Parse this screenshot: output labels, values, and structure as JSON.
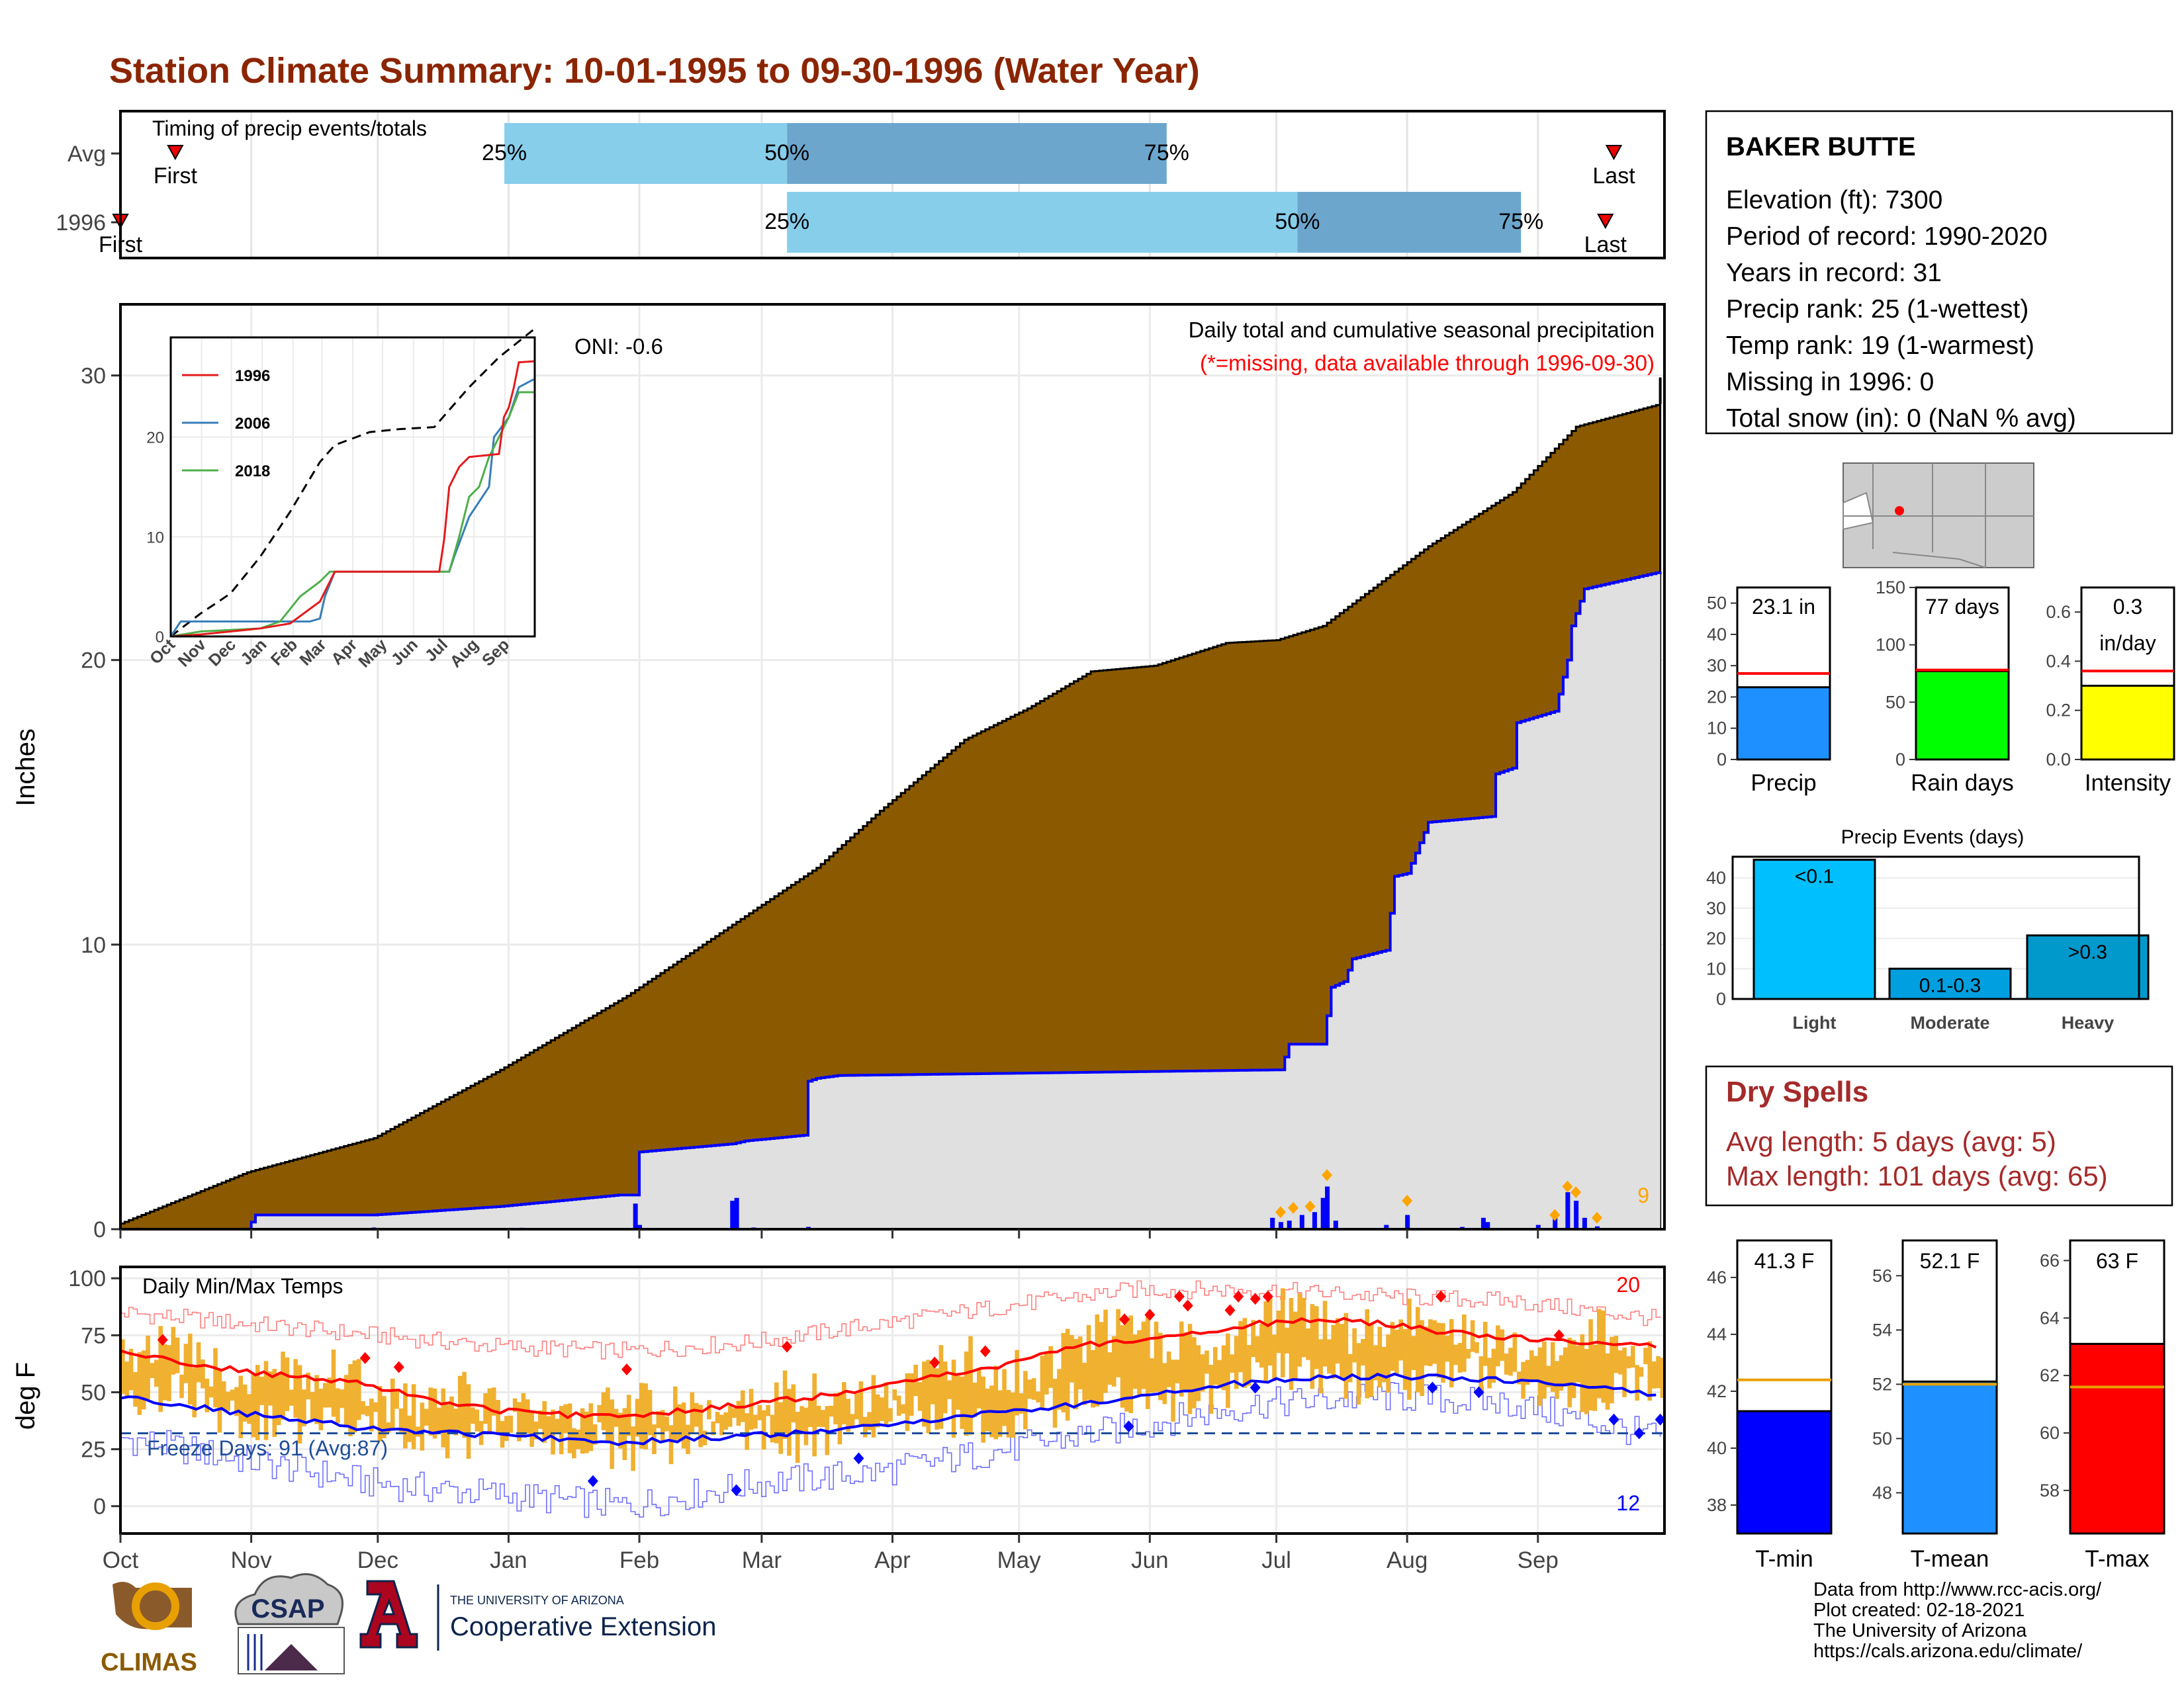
{
  "title": "Station Climate Summary: 10-01-1995 to 09-30-1996 (Water Year)",
  "colors": {
    "title": "#8b2500",
    "brown": "#8b5a00",
    "gray_fill": "#e0e0e0",
    "timing_light": "#87ceeb",
    "timing_dark": "#6ca6cd",
    "red": "#ff0000",
    "blue": "#0000ff",
    "temp_bar": "#f0b030",
    "freeze_line": "#1f4e9a",
    "dry_spell": "#a52a2a",
    "rain_green": "#00ff00",
    "precip_blue": "#1e90ff",
    "intensity_yellow": "#ffff00",
    "event_light": "#00bfff",
    "event_moderate": "#00a0e0",
    "event_heavy": "#0099cc",
    "inset_1996": "#e41a1c",
    "inset_2006": "#377eb8",
    "inset_2018": "#4daf4a"
  },
  "months": [
    "Oct",
    "Nov",
    "Dec",
    "Jan",
    "Feb",
    "Mar",
    "Apr",
    "May",
    "Jun",
    "Jul",
    "Aug",
    "Sep"
  ],
  "timing": {
    "label": "Timing of precip events/totals",
    "rows": [
      {
        "name": "Avg",
        "first": "First",
        "last": "Last",
        "first_day": 13,
        "last_day": 354,
        "p25": 91,
        "p50": 158,
        "p75": 248
      },
      {
        "name": "1996",
        "first": "First",
        "last": "Last",
        "first_day": 0,
        "last_day": 352,
        "p25": 158,
        "p50": 279,
        "p75": 332
      }
    ],
    "pct_labels": [
      "25%",
      "50%",
      "75%"
    ]
  },
  "precip": {
    "ylabel": "Inches",
    "yticks": [
      0,
      10,
      20,
      30
    ],
    "ylim": [
      0,
      32.5
    ],
    "oni": "ONI: -0.6",
    "caption": "Daily total and cumulative seasonal precipitation",
    "missing_note": "(*=missing, data available through 1996-09-30)",
    "extreme_count": "9",
    "chart_data": {
      "type": "area",
      "series": [
        {
          "name": "avg_cumulative",
          "day": [
            0,
            10,
            30,
            60,
            90,
            120,
            150,
            165,
            180,
            200,
            215,
            230,
            245,
            262,
            274,
            285,
            310,
            330,
            345,
            365
          ],
          "values": [
            0.2,
            0.8,
            2.0,
            3.2,
            5.6,
            8.2,
            11.2,
            12.7,
            14.7,
            17.2,
            18.3,
            19.6,
            19.8,
            20.6,
            20.7,
            21.2,
            24.0,
            25.9,
            28.2,
            29.0
          ]
        },
        {
          "name": "1996_cumulative",
          "day": [
            0,
            30,
            32,
            60,
            90,
            118,
            122,
            122,
            145,
            148,
            162,
            163,
            165,
            170,
            275,
            277,
            285,
            287,
            290,
            292,
            300,
            302,
            305,
            310,
            325,
            326,
            330,
            331,
            340,
            343,
            344,
            347,
            365
          ],
          "values": [
            0,
            0,
            0.5,
            0.5,
            0.8,
            1.2,
            1.2,
            2.7,
            3.0,
            3.1,
            3.3,
            5.2,
            5.3,
            5.4,
            5.6,
            6.5,
            6.5,
            8.5,
            8.7,
            9.5,
            9.8,
            12.4,
            12.5,
            14.3,
            14.5,
            16.0,
            16.2,
            17.8,
            18.2,
            20.0,
            21.2,
            22.5,
            23.1
          ]
        }
      ],
      "daily_bars": [
        [
          4,
          0.05
        ],
        [
          30,
          0.05
        ],
        [
          60,
          0.06
        ],
        [
          90,
          0.04
        ],
        [
          95,
          0.05
        ],
        [
          122,
          0.9
        ],
        [
          123,
          0.15
        ],
        [
          145,
          1.0
        ],
        [
          146,
          1.1
        ],
        [
          150,
          0.06
        ],
        [
          163,
          0.08
        ],
        [
          273,
          0.4
        ],
        [
          275,
          0.25
        ],
        [
          277,
          0.3
        ],
        [
          280,
          0.5
        ],
        [
          283,
          0.6
        ],
        [
          285,
          1.1
        ],
        [
          286,
          1.5
        ],
        [
          288,
          0.3
        ],
        [
          300,
          0.15
        ],
        [
          305,
          0.5
        ],
        [
          318,
          0.08
        ],
        [
          323,
          0.4
        ],
        [
          324,
          0.25
        ],
        [
          336,
          0.15
        ],
        [
          340,
          0.6
        ],
        [
          343,
          1.3
        ],
        [
          345,
          1.0
        ],
        [
          347,
          0.4
        ],
        [
          350,
          0.1
        ]
      ],
      "extreme_days": [
        [
          275,
          0.6
        ],
        [
          278,
          0.75
        ],
        [
          282,
          0.8
        ],
        [
          286,
          1.9
        ],
        [
          305,
          1.0
        ],
        [
          340,
          0.5
        ],
        [
          343,
          1.5
        ],
        [
          345,
          1.3
        ],
        [
          350,
          0.4
        ]
      ]
    }
  },
  "inset": {
    "series": [
      {
        "name": "1996",
        "color_key": "inset_1996"
      },
      {
        "name": "2006",
        "color_key": "inset_2006"
      },
      {
        "name": "2018",
        "color_key": "inset_2018"
      }
    ],
    "yticks": [
      0,
      10,
      20
    ],
    "ylim": [
      0,
      30
    ],
    "months": [
      "Oct",
      "Nov",
      "Dec",
      "Jan",
      "Feb",
      "Mar",
      "Apr",
      "May",
      "Jun",
      "Jul",
      "Aug",
      "Sep"
    ],
    "chart_data": {
      "type": "line",
      "avg_day": [
        0,
        30,
        60,
        90,
        120,
        150,
        165,
        200,
        230,
        265,
        300,
        330,
        365
      ],
      "avg_values": [
        0,
        2.3,
        4.3,
        8,
        12.5,
        17.5,
        19.2,
        20.5,
        20.8,
        21,
        25,
        28,
        30.8
      ],
      "1996_day": [
        0,
        30,
        60,
        90,
        120,
        150,
        165,
        270,
        275,
        280,
        290,
        300,
        330,
        335,
        340,
        345,
        350,
        365
      ],
      "1996_values": [
        0,
        0.2,
        0.5,
        0.8,
        1.3,
        3.5,
        6.5,
        6.5,
        9.8,
        15,
        17,
        18,
        18.3,
        22,
        23,
        25,
        27.5,
        27.6
      ],
      "2006_day": [
        0,
        10,
        60,
        120,
        140,
        150,
        155,
        165,
        180,
        280,
        285,
        300,
        320,
        325,
        340,
        350,
        365
      ],
      "2006_values": [
        0,
        1.5,
        1.5,
        1.5,
        1.5,
        1.8,
        4,
        6.5,
        6.5,
        6.5,
        8,
        12,
        15,
        20,
        22,
        25,
        25.8
      ],
      "2018_day": [
        0,
        30,
        90,
        110,
        130,
        150,
        160,
        170,
        280,
        290,
        300,
        310,
        320,
        330,
        340,
        350,
        365
      ],
      "2018_values": [
        0,
        0.5,
        0.8,
        1.5,
        4,
        5.5,
        6.5,
        6.5,
        6.5,
        10,
        14,
        15,
        18,
        20,
        22,
        24.5,
        24.5
      ]
    }
  },
  "temps": {
    "ylabel": "deg F",
    "title": "Daily Min/Max Temps",
    "freeze": "Freeze Days: 91 (Avg:87)",
    "yticks": [
      0,
      25,
      50,
      75,
      100
    ],
    "ylim": [
      -12,
      105
    ],
    "freeze_line": 32,
    "max_extremes": "20",
    "min_extremes": "12",
    "chart_data": {
      "type": "line",
      "avg_max_day": [
        0,
        15,
        30,
        45,
        60,
        75,
        90,
        105,
        120,
        135,
        150,
        165,
        180,
        195,
        210,
        225,
        240,
        255,
        270,
        285,
        300,
        315,
        330,
        345,
        365
      ],
      "avg_max": [
        68,
        63,
        59,
        56,
        53,
        46,
        42,
        40,
        40,
        42,
        45,
        48,
        52,
        58,
        62,
        70,
        73,
        76,
        80,
        82,
        80,
        76,
        74,
        72,
        70
      ],
      "avg_min_day": [
        0,
        20,
        40,
        60,
        80,
        100,
        120,
        140,
        160,
        180,
        200,
        220,
        240,
        260,
        280,
        300,
        320,
        340,
        365
      ],
      "avg_min": [
        48,
        43,
        38,
        34,
        32,
        30,
        28,
        30,
        32,
        35,
        40,
        43,
        48,
        53,
        56,
        57,
        56,
        54,
        49
      ],
      "max_env_day": [
        0,
        30,
        60,
        90,
        120,
        150,
        180,
        210,
        240,
        270,
        300,
        330,
        365
      ],
      "max_env": [
        85,
        80,
        75,
        70,
        68,
        72,
        80,
        88,
        95,
        95,
        92,
        90,
        82
      ],
      "min_env_day": [
        0,
        30,
        60,
        90,
        120,
        150,
        180,
        210,
        240,
        270,
        300,
        330,
        365
      ],
      "min_env": [
        30,
        20,
        10,
        5,
        0,
        10,
        15,
        25,
        35,
        45,
        48,
        45,
        30
      ]
    }
  },
  "info": {
    "station": "BAKER BUTTE",
    "lines": [
      "Elevation (ft): 7300",
      "Period of record: 1990-2020",
      "Years in record: 31",
      "Precip rank: 25 (1-wettest)",
      "Temp rank: 19 (1-warmest)",
      "Missing in 1996: 0",
      "Total snow (in): 0 (NaN % avg)"
    ]
  },
  "summary_bars": [
    {
      "name": "precip",
      "label": "Precip",
      "value_text": "23.1 in",
      "value": 23.1,
      "avg": 27.5,
      "yticks": [
        0,
        10,
        20,
        30,
        40,
        50
      ],
      "ylim": [
        0,
        55
      ],
      "color_key": "precip_blue",
      "avg_color_key": "red"
    },
    {
      "name": "rain-days",
      "label": "Rain days",
      "value_text": "77 days",
      "value": 77,
      "avg": 78,
      "yticks": [
        0,
        50,
        100,
        150
      ],
      "ylim": [
        0,
        150
      ],
      "color_key": "rain_green",
      "avg_color_key": "red"
    },
    {
      "name": "intensity",
      "label": "Intensity",
      "value_text": "0.3",
      "value_text2": "in/day",
      "value": 0.3,
      "avg": 0.36,
      "yticks": [
        "0.0",
        "0.2",
        "0.4",
        "0.6"
      ],
      "ytick_vals": [
        0,
        0.2,
        0.4,
        0.6
      ],
      "ylim": [
        0,
        0.7
      ],
      "color_key": "intensity_yellow",
      "avg_color_key": "red"
    }
  ],
  "events": {
    "title": "Precip Events (days)",
    "yticks": [
      0,
      10,
      20,
      30,
      40
    ],
    "ylim": [
      0,
      47
    ],
    "chart_data": {
      "type": "bar",
      "categories": [
        "Light",
        "Moderate",
        "Heavy"
      ],
      "values": [
        46,
        10,
        21
      ],
      "bar_labels": [
        "<0.1",
        "0.1-0.3",
        ">0.3"
      ]
    }
  },
  "dry_spells": {
    "title": "Dry Spells",
    "lines": [
      "Avg length: 5 days (avg: 5)",
      "Max length: 101 days (avg: 65)"
    ]
  },
  "temp_bars": [
    {
      "name": "tmin",
      "label": "T-min",
      "value_text": "41.3 F",
      "value": 41.3,
      "avg": 42.4,
      "yticks": [
        38,
        40,
        42,
        44,
        46
      ],
      "ylim": [
        37,
        47.3
      ],
      "color_key": "blue"
    },
    {
      "name": "tmean",
      "label": "T-mean",
      "value_text": "52.1 F",
      "value": 52.1,
      "avg": 52.0,
      "yticks": [
        48,
        50,
        52,
        54,
        56
      ],
      "ylim": [
        46.5,
        57.3
      ],
      "color_key": "precip_blue"
    },
    {
      "name": "tmax",
      "label": "T-max",
      "value_text": "63 F",
      "value": 63.1,
      "avg": 61.6,
      "yticks": [
        58,
        60,
        62,
        64,
        66
      ],
      "ylim": [
        56.5,
        66.7
      ],
      "color_key": "red"
    }
  ],
  "footer": {
    "lines": [
      "Data from http://www.rcc-acis.org/",
      "Plot created: 02-18-2021",
      "The University of Arizona",
      "https://cals.arizona.edu/climate/"
    ],
    "logo_climas": "CLIMAS",
    "logo_csap": "CSAP",
    "logo_ua_small": "THE UNIVERSITY OF ARIZONA",
    "logo_ua_big": "Cooperative Extension"
  }
}
